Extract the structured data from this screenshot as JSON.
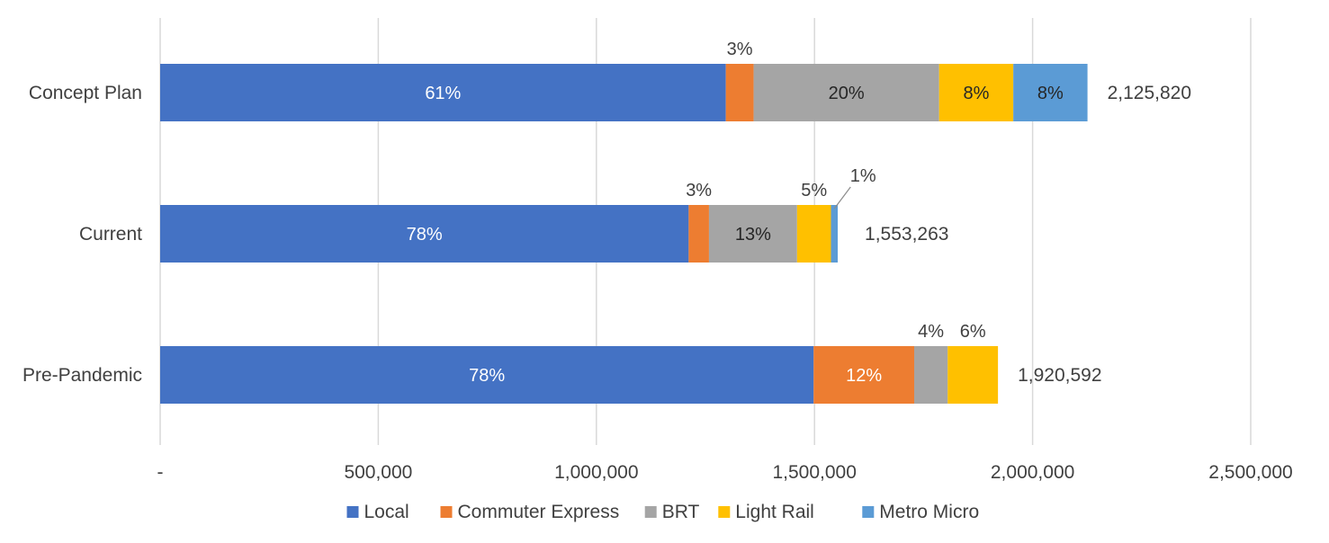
{
  "chart_data": {
    "type": "bar",
    "orientation": "horizontal",
    "stacked": true,
    "categories": [
      "Concept Plan",
      "Current",
      "Pre-Pandemic"
    ],
    "series": [
      {
        "name": "Local",
        "color": "#4472c4",
        "values": [
          1296750,
          1211545,
          1498062
        ],
        "labels": [
          "61%",
          "78%",
          "78%"
        ]
      },
      {
        "name": "Commuter Express",
        "color": "#ed7d31",
        "values": [
          63775,
          46598,
          230471
        ],
        "labels": [
          "3%",
          "3%",
          "12%"
        ]
      },
      {
        "name": "BRT",
        "color": "#a5a5a5",
        "values": [
          425164,
          201924,
          76824
        ],
        "labels": [
          "20%",
          "13%",
          "4%"
        ]
      },
      {
        "name": "Light Rail",
        "color": "#ffc000",
        "values": [
          170066,
          77663,
          115235
        ],
        "labels": [
          "8%",
          "5%",
          "6%"
        ]
      },
      {
        "name": "Metro Micro",
        "color": "#5b9bd5",
        "values": [
          170065,
          15533,
          0
        ],
        "labels": [
          "8%",
          "1%",
          ""
        ]
      }
    ],
    "totals": [
      "2,125,820",
      "1,553,263",
      "1,920,592"
    ],
    "xlim": [
      0,
      2500000
    ],
    "xticks": [
      0,
      500000,
      1000000,
      1500000,
      2000000,
      2500000
    ],
    "xtick_labels": [
      "-",
      "500,000",
      "1,000,000",
      "1,500,000",
      "2,000,000",
      "2,500,000"
    ],
    "grid": true,
    "legend_position": "bottom"
  }
}
